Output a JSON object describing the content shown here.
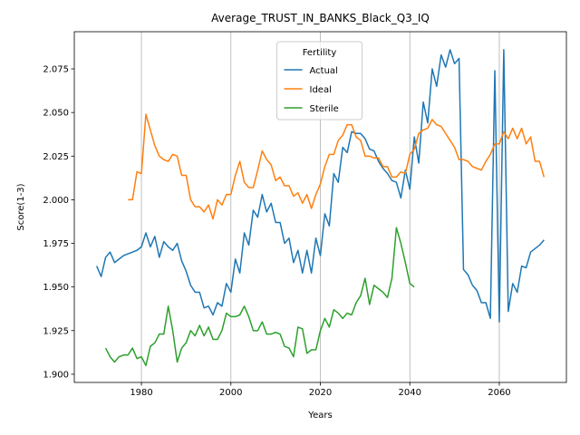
{
  "chart_data": {
    "type": "line",
    "title": "Average_TRUST_IN_BANKS_Black_Q3_IQ",
    "x_label": "Years",
    "y_label": "Score(1-3)",
    "legend_title": "Fertility",
    "legend": "upper center",
    "grid": "x",
    "xlim": [
      1965,
      2075
    ],
    "ylim": [
      1.8953,
      2.0963
    ],
    "xticks": [
      1980,
      2000,
      2020,
      2040,
      2060
    ],
    "yticks": [
      {
        "value": 1.9,
        "label": "1.900"
      },
      {
        "value": 1.925,
        "label": "1.925"
      },
      {
        "value": 1.95,
        "label": "1.950"
      },
      {
        "value": 1.975,
        "label": "1.975"
      },
      {
        "value": 2.0,
        "label": "2.000"
      },
      {
        "value": 2.025,
        "label": "2.025"
      },
      {
        "value": 2.05,
        "label": "2.050"
      },
      {
        "value": 2.075,
        "label": "2.075"
      }
    ],
    "series": [
      {
        "name": "Actual",
        "color": "#1f77b4",
        "x": [
          1970,
          1971,
          1972,
          1973,
          1974,
          1975,
          1976,
          1977,
          1978,
          1979,
          1980,
          1981,
          1982,
          1983,
          1984,
          1985,
          1986,
          1987,
          1988,
          1989,
          1990,
          1991,
          1992,
          1993,
          1994,
          1995,
          1996,
          1997,
          1998,
          1999,
          2000,
          2001,
          2002,
          2003,
          2004,
          2005,
          2006,
          2007,
          2008,
          2009,
          2010,
          2011,
          2012,
          2013,
          2014,
          2015,
          2016,
          2017,
          2018,
          2019,
          2020,
          2021,
          2022,
          2023,
          2024,
          2025,
          2026,
          2027,
          2028,
          2029,
          2030,
          2031,
          2032,
          2033,
          2034,
          2035,
          2036,
          2037,
          2038,
          2039,
          2040,
          2041,
          2042,
          2043,
          2044,
          2045,
          2046,
          2047,
          2048,
          2049,
          2050,
          2051,
          2052,
          2053,
          2054,
          2055,
          2056,
          2057,
          2058,
          2059,
          2060,
          2061,
          2062,
          2063,
          2064,
          2065,
          2066,
          2067,
          2068,
          2069,
          2070
        ],
        "values": [
          1.962,
          1.956,
          1.967,
          1.97,
          1.964,
          1.966,
          1.968,
          1.969,
          1.97,
          1.971,
          1.973,
          1.981,
          1.973,
          1.979,
          1.967,
          1.976,
          1.973,
          1.971,
          1.975,
          1.965,
          1.959,
          1.951,
          1.947,
          1.947,
          1.938,
          1.939,
          1.934,
          1.941,
          1.939,
          1.952,
          1.947,
          1.966,
          1.958,
          1.981,
          1.974,
          1.994,
          1.99,
          2.003,
          1.993,
          1.998,
          1.987,
          1.987,
          1.975,
          1.978,
          1.964,
          1.971,
          1.958,
          1.971,
          1.958,
          1.978,
          1.968,
          1.992,
          1.985,
          2.015,
          2.01,
          2.03,
          2.027,
          2.039,
          2.038,
          2.038,
          2.035,
          2.029,
          2.028,
          2.022,
          2.018,
          2.015,
          2.011,
          2.01,
          2.001,
          2.017,
          2.006,
          2.036,
          2.021,
          2.056,
          2.044,
          2.075,
          2.065,
          2.083,
          2.076,
          2.086,
          2.078,
          2.081,
          1.96,
          1.957,
          1.951,
          1.948,
          1.941,
          1.941,
          1.932,
          2.074,
          1.93,
          2.086,
          1.936,
          1.952,
          1.947,
          1.962,
          1.961,
          1.97,
          1.972,
          1.974,
          1.977
        ]
      },
      {
        "name": "Ideal",
        "color": "#ff7f0e",
        "x": [
          1977,
          1978,
          1979,
          1980,
          1981,
          1982,
          1983,
          1984,
          1985,
          1986,
          1987,
          1988,
          1989,
          1990,
          1991,
          1992,
          1993,
          1994,
          1995,
          1996,
          1997,
          1998,
          1999,
          2000,
          2001,
          2002,
          2003,
          2004,
          2005,
          2006,
          2007,
          2008,
          2009,
          2010,
          2011,
          2012,
          2013,
          2014,
          2015,
          2016,
          2017,
          2018,
          2019,
          2020,
          2021,
          2022,
          2023,
          2024,
          2025,
          2026,
          2027,
          2028,
          2029,
          2030,
          2031,
          2032,
          2033,
          2034,
          2035,
          2036,
          2037,
          2038,
          2039,
          2040,
          2041,
          2042,
          2043,
          2044,
          2045,
          2046,
          2047,
          2048,
          2049,
          2050,
          2051,
          2052,
          2053,
          2054,
          2055,
          2056,
          2057,
          2058,
          2059,
          2060,
          2061,
          2062,
          2063,
          2064,
          2065,
          2066,
          2067,
          2068,
          2069,
          2070
        ],
        "values": [
          2.0,
          2.0,
          2.016,
          2.015,
          2.049,
          2.04,
          2.031,
          2.025,
          2.023,
          2.022,
          2.026,
          2.025,
          2.014,
          2.014,
          2.0,
          1.996,
          1.996,
          1.993,
          1.997,
          1.989,
          2.0,
          1.997,
          2.003,
          2.003,
          2.014,
          2.022,
          2.01,
          2.007,
          2.007,
          2.017,
          2.028,
          2.023,
          2.02,
          2.011,
          2.013,
          2.008,
          2.008,
          2.002,
          2.004,
          1.998,
          2.003,
          1.995,
          2.003,
          2.009,
          2.019,
          2.026,
          2.026,
          2.034,
          2.037,
          2.043,
          2.043,
          2.036,
          2.034,
          2.025,
          2.025,
          2.024,
          2.024,
          2.019,
          2.019,
          2.013,
          2.013,
          2.016,
          2.015,
          2.026,
          2.029,
          2.038,
          2.04,
          2.041,
          2.046,
          2.043,
          2.042,
          2.038,
          2.034,
          2.03,
          2.023,
          2.023,
          2.022,
          2.019,
          2.018,
          2.017,
          2.022,
          2.026,
          2.032,
          2.032,
          2.039,
          2.035,
          2.041,
          2.035,
          2.041,
          2.032,
          2.036,
          2.022,
          2.022,
          2.013
        ]
      },
      {
        "name": "Sterile",
        "color": "#2ca02c",
        "x": [
          1972,
          1973,
          1974,
          1975,
          1976,
          1977,
          1978,
          1979,
          1980,
          1981,
          1982,
          1983,
          1984,
          1985,
          1986,
          1987,
          1988,
          1989,
          1990,
          1991,
          1992,
          1993,
          1994,
          1995,
          1996,
          1997,
          1998,
          1999,
          2000,
          2001,
          2002,
          2003,
          2004,
          2005,
          2006,
          2007,
          2008,
          2009,
          2010,
          2011,
          2012,
          2013,
          2014,
          2015,
          2016,
          2017,
          2018,
          2019,
          2020,
          2021,
          2022,
          2023,
          2024,
          2025,
          2026,
          2027,
          2028,
          2029,
          2030,
          2031,
          2032,
          2033,
          2034,
          2035,
          2036,
          2037,
          2038,
          2039,
          2040,
          2041
        ],
        "values": [
          1.915,
          1.91,
          1.907,
          1.91,
          1.911,
          1.911,
          1.915,
          1.909,
          1.91,
          1.905,
          1.916,
          1.918,
          1.923,
          1.923,
          1.939,
          1.925,
          1.907,
          1.915,
          1.918,
          1.925,
          1.922,
          1.928,
          1.922,
          1.927,
          1.92,
          1.92,
          1.925,
          1.935,
          1.933,
          1.933,
          1.934,
          1.939,
          1.933,
          1.925,
          1.925,
          1.93,
          1.923,
          1.923,
          1.924,
          1.923,
          1.916,
          1.915,
          1.91,
          1.927,
          1.926,
          1.912,
          1.914,
          1.914,
          1.925,
          1.932,
          1.927,
          1.937,
          1.935,
          1.932,
          1.935,
          1.934,
          1.941,
          1.945,
          1.955,
          1.94,
          1.951,
          1.949,
          1.947,
          1.944,
          1.955,
          1.984,
          1.975,
          1.964,
          1.952,
          1.95
        ]
      }
    ]
  }
}
